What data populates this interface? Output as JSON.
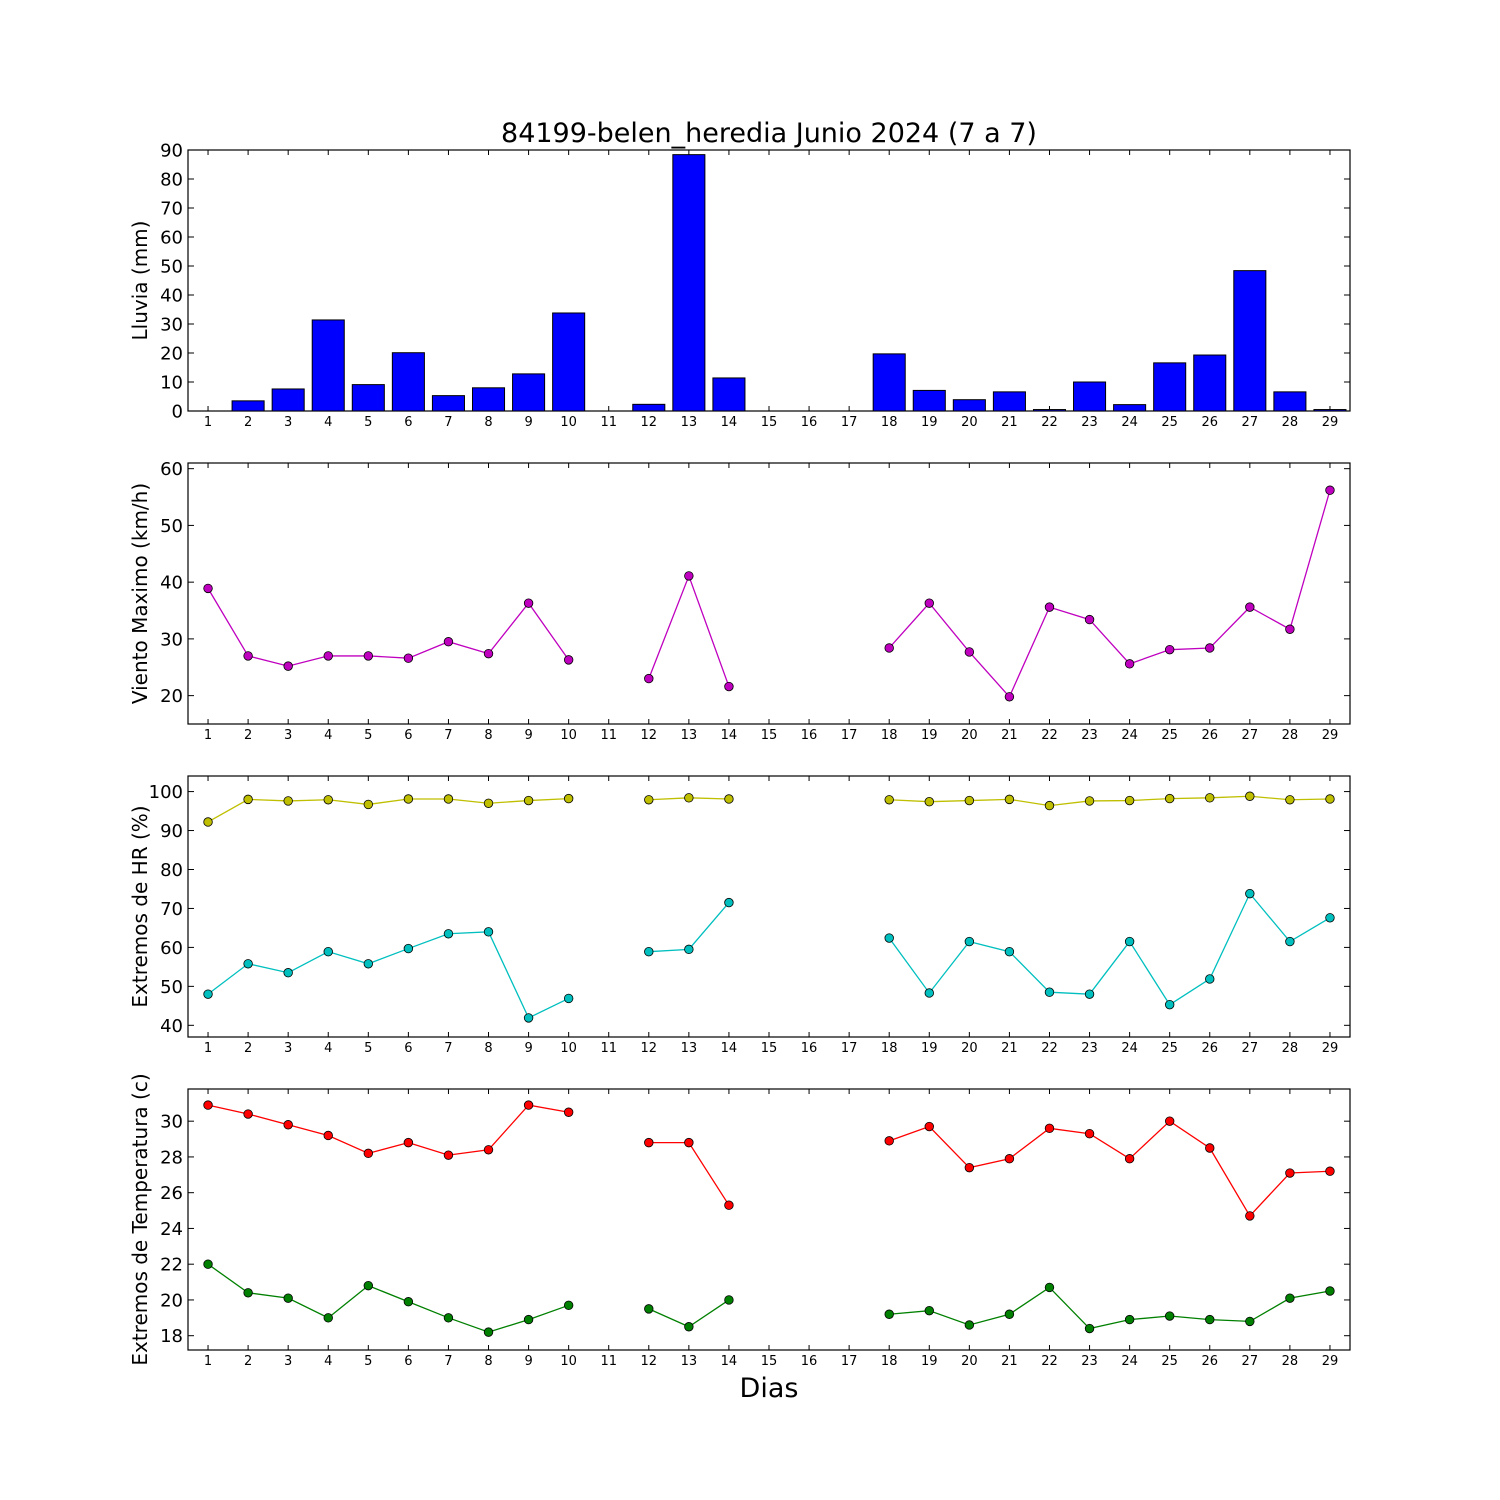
{
  "figure": {
    "title": "84199-belen_heredia Junio 2024  (7 a 7)",
    "xlabel": "Dias"
  },
  "chart_data": [
    {
      "type": "bar",
      "ylabel": "Lluvia (mm)",
      "ylim": [
        0,
        90
      ],
      "yticks": [
        0,
        10,
        20,
        30,
        40,
        50,
        60,
        70,
        80,
        90
      ],
      "categories": [
        "1",
        "2",
        "3",
        "4",
        "5",
        "6",
        "7",
        "8",
        "9",
        "10",
        "11",
        "12",
        "13",
        "14",
        "15",
        "16",
        "17",
        "18",
        "19",
        "20",
        "21",
        "22",
        "23",
        "24",
        "25",
        "26",
        "27",
        "28",
        "29"
      ],
      "values": [
        0,
        3.5,
        7.6,
        31.4,
        9.1,
        20.1,
        5.3,
        8.0,
        12.8,
        33.8,
        0,
        2.3,
        88.4,
        11.4,
        0,
        0,
        0,
        19.7,
        7.1,
        3.9,
        6.6,
        0.5,
        10.0,
        2.2,
        16.6,
        19.3,
        48.4,
        6.6,
        0.5
      ],
      "color": "#0000ff"
    },
    {
      "type": "line",
      "ylabel": "Viento Maximo (km/h)",
      "ylim": [
        15,
        61
      ],
      "yticks": [
        20,
        30,
        40,
        50,
        60
      ],
      "x": [
        1,
        2,
        3,
        4,
        5,
        6,
        7,
        8,
        9,
        10,
        11,
        12,
        13,
        14,
        15,
        16,
        17,
        18,
        19,
        20,
        21,
        22,
        23,
        24,
        25,
        26,
        27,
        28,
        29
      ],
      "series": [
        {
          "color": "#bf00bf",
          "values": [
            38.9,
            27.0,
            25.2,
            27.0,
            27.0,
            26.6,
            29.5,
            27.4,
            36.3,
            26.3,
            null,
            23.0,
            41.1,
            21.6,
            null,
            null,
            null,
            28.4,
            36.3,
            27.7,
            19.8,
            35.6,
            33.4,
            25.6,
            28.1,
            28.4,
            35.6,
            31.7,
            56.2
          ]
        }
      ]
    },
    {
      "type": "line",
      "ylabel": "Extremos de HR (%)",
      "ylim": [
        37,
        104
      ],
      "yticks": [
        40,
        50,
        60,
        70,
        80,
        90,
        100
      ],
      "x": [
        1,
        2,
        3,
        4,
        5,
        6,
        7,
        8,
        9,
        10,
        11,
        12,
        13,
        14,
        15,
        16,
        17,
        18,
        19,
        20,
        21,
        22,
        23,
        24,
        25,
        26,
        27,
        28,
        29
      ],
      "series": [
        {
          "color": "#bfbf00",
          "values": [
            92.2,
            98.0,
            97.6,
            97.9,
            96.7,
            98.1,
            98.1,
            97.0,
            97.7,
            98.2,
            null,
            97.9,
            98.4,
            98.1,
            null,
            null,
            null,
            97.9,
            97.4,
            97.7,
            98.0,
            96.4,
            97.6,
            97.7,
            98.2,
            98.4,
            98.8,
            97.9,
            98.1
          ]
        },
        {
          "color": "#00bfbf",
          "values": [
            48.0,
            55.8,
            53.5,
            58.9,
            55.8,
            59.7,
            63.5,
            64.0,
            41.9,
            46.9,
            null,
            58.9,
            59.5,
            71.5,
            null,
            null,
            null,
            62.4,
            48.3,
            61.5,
            58.9,
            48.5,
            48.0,
            61.5,
            45.3,
            51.9,
            73.8,
            61.5,
            67.6
          ]
        }
      ]
    },
    {
      "type": "line",
      "ylabel": "Extremos de Temperatura (c)",
      "ylim": [
        17.2,
        31.8
      ],
      "yticks": [
        18,
        20,
        22,
        24,
        26,
        28,
        30
      ],
      "x": [
        1,
        2,
        3,
        4,
        5,
        6,
        7,
        8,
        9,
        10,
        11,
        12,
        13,
        14,
        15,
        16,
        17,
        18,
        19,
        20,
        21,
        22,
        23,
        24,
        25,
        26,
        27,
        28,
        29
      ],
      "series": [
        {
          "color": "#ff0000",
          "values": [
            30.9,
            30.4,
            29.8,
            29.2,
            28.2,
            28.8,
            28.1,
            28.4,
            30.9,
            30.5,
            null,
            28.8,
            28.8,
            25.3,
            null,
            null,
            null,
            28.9,
            29.7,
            27.4,
            27.9,
            29.6,
            29.3,
            27.9,
            30.0,
            28.5,
            24.7,
            27.1,
            27.2
          ]
        },
        {
          "color": "#008000",
          "values": [
            22.0,
            20.4,
            20.1,
            19.0,
            20.8,
            19.9,
            19.0,
            18.2,
            18.9,
            19.7,
            null,
            19.5,
            18.5,
            20.0,
            null,
            null,
            null,
            19.2,
            19.4,
            18.6,
            19.2,
            20.7,
            18.4,
            18.9,
            19.1,
            18.9,
            18.8,
            20.1,
            20.5
          ]
        }
      ]
    }
  ]
}
